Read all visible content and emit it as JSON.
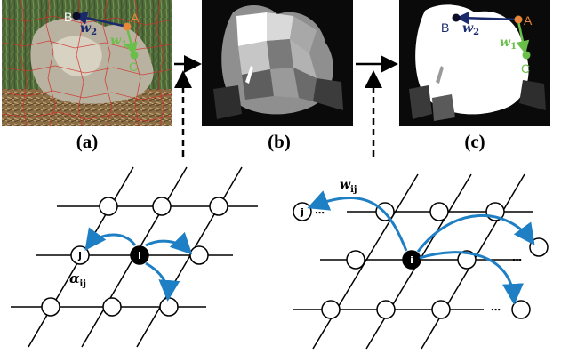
{
  "panels": {
    "a": {
      "caption": "(a)",
      "points": [
        "A",
        "B",
        "C"
      ],
      "w2_main": "w",
      "w2_sub": "2",
      "w1_main": "w",
      "w1_sub": "1"
    },
    "b": {
      "caption": "(b)"
    },
    "c": {
      "caption": "(c)",
      "points": [
        "A",
        "B",
        "C"
      ],
      "w2_main": "w",
      "w2_sub": "2",
      "w1_main": "w",
      "w1_sub": "1"
    }
  },
  "grid_left": {
    "center_node": "i",
    "neighbor_node": "j",
    "edge_label_main": "α",
    "edge_label_sub": "ij"
  },
  "grid_right": {
    "center_node": "i",
    "far_node": "j",
    "ellipsis": "⋯",
    "edge_label_main": "w",
    "edge_label_sub": "ij"
  },
  "colors": {
    "blue_arrow": "#1f7fc4",
    "navy": "#1a2a6c",
    "orange": "#e8873a",
    "green": "#6abf4b"
  }
}
